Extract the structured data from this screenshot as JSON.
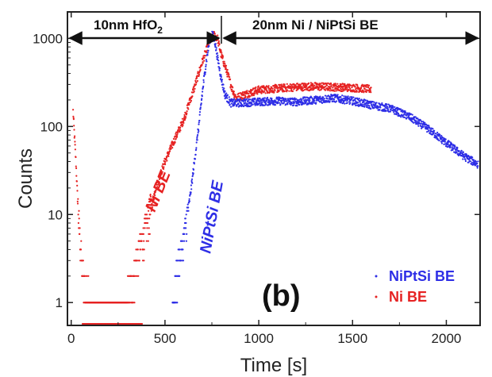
{
  "chart_data": {
    "type": "scatter",
    "xlabel": "Time [s]",
    "ylabel": "Counts",
    "xlim": [
      -20,
      2180
    ],
    "ylim": [
      0.55,
      2000
    ],
    "y_scale": "log",
    "x_ticks": [
      0,
      500,
      1000,
      1500,
      2000
    ],
    "x_tick_labels": [
      "0",
      "500",
      "1000",
      "1500",
      "2000"
    ],
    "y_ticks": [
      1,
      10,
      100,
      1000
    ],
    "y_tick_labels": [
      "1",
      "10",
      "100",
      "1000"
    ],
    "grid": false,
    "legend_position": "bottom-right",
    "panel_label": "(b)",
    "regions": [
      {
        "label": "10nm HfO",
        "subscript": "2",
        "x_range": [
          0,
          760
        ]
      },
      {
        "label": "20nm Ni / NiPtSi BE",
        "x_range": [
          760,
          2170
        ]
      }
    ],
    "series": [
      {
        "name": "NiPtSi BE",
        "color": "#2e2ee6",
        "points": [
          [
            540,
            1
          ],
          [
            560,
            2
          ],
          [
            580,
            3
          ],
          [
            600,
            5
          ],
          [
            620,
            10
          ],
          [
            640,
            20
          ],
          [
            660,
            45
          ],
          [
            680,
            100
          ],
          [
            700,
            250
          ],
          [
            720,
            550
          ],
          [
            740,
            1000
          ],
          [
            750,
            1150
          ],
          [
            765,
            950
          ],
          [
            780,
            600
          ],
          [
            800,
            350
          ],
          [
            820,
            230
          ],
          [
            850,
            185
          ],
          [
            900,
            185
          ],
          [
            1000,
            190
          ],
          [
            1100,
            195
          ],
          [
            1200,
            190
          ],
          [
            1300,
            200
          ],
          [
            1400,
            210
          ],
          [
            1500,
            195
          ],
          [
            1600,
            175
          ],
          [
            1700,
            160
          ],
          [
            1800,
            130
          ],
          [
            1900,
            95
          ],
          [
            2000,
            65
          ],
          [
            2100,
            45
          ],
          [
            2170,
            37
          ]
        ]
      },
      {
        "name": "Ni BE",
        "color": "#e62222",
        "points": [
          [
            10,
            150
          ],
          [
            25,
            40
          ],
          [
            40,
            8
          ],
          [
            60,
            2
          ],
          [
            100,
            1
          ],
          [
            200,
            1
          ],
          [
            300,
            1
          ],
          [
            350,
            3
          ],
          [
            390,
            6
          ],
          [
            420,
            10
          ],
          [
            450,
            20
          ],
          [
            500,
            40
          ],
          [
            550,
            70
          ],
          [
            600,
            120
          ],
          [
            650,
            250
          ],
          [
            700,
            550
          ],
          [
            740,
            950
          ],
          [
            760,
            1100
          ],
          [
            780,
            1000
          ],
          [
            800,
            650
          ],
          [
            830,
            420
          ],
          [
            860,
            260
          ],
          [
            880,
            210
          ],
          [
            900,
            220
          ],
          [
            950,
            240
          ],
          [
            1000,
            260
          ],
          [
            1100,
            270
          ],
          [
            1200,
            280
          ],
          [
            1300,
            285
          ],
          [
            1400,
            280
          ],
          [
            1500,
            275
          ],
          [
            1600,
            265
          ]
        ]
      }
    ]
  },
  "legend": [
    {
      "label": "NiPtSi BE",
      "color": "#2e2ee6"
    },
    {
      "label": "Ni BE",
      "color": "#e62222"
    }
  ],
  "annotations": {
    "ni_label": "Ni BE",
    "niptsi_label": "NiPtSi BE"
  }
}
